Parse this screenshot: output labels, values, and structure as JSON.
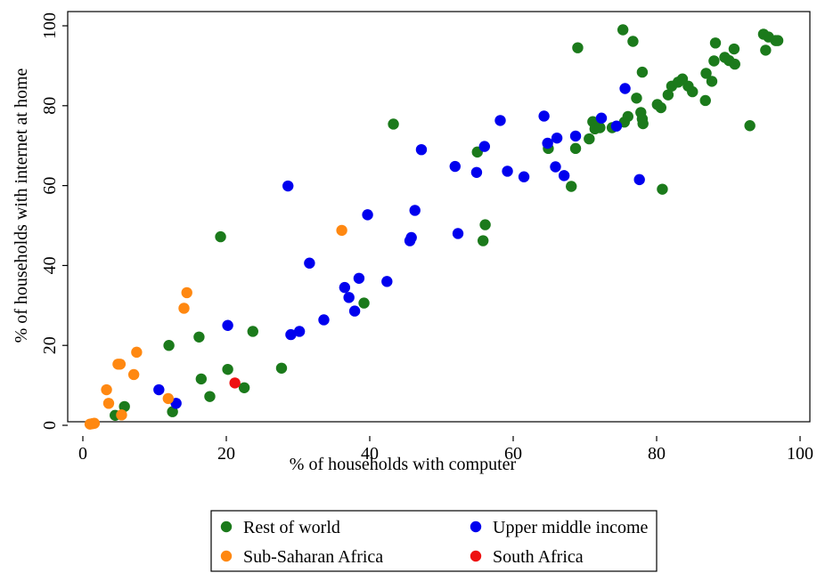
{
  "chart_data": {
    "type": "scatter",
    "title": "",
    "xlabel": "% of households with computer",
    "ylabel": "% of households with internet at home",
    "xlim": [
      0,
      100
    ],
    "ylim": [
      0,
      100
    ],
    "xticks": [
      "0",
      "20",
      "40",
      "60",
      "80",
      "100"
    ],
    "yticks": [
      "0",
      "20",
      "40",
      "60",
      "80",
      "100"
    ],
    "grid": false,
    "legend_placement": "bottom",
    "series": [
      {
        "name": "Rest of world",
        "color": "#1b7a1b",
        "points": [
          [
            4.5,
            2.5
          ],
          [
            5.8,
            4.7
          ],
          [
            12.5,
            3.4
          ],
          [
            12.0,
            20.0
          ],
          [
            16.2,
            22.1
          ],
          [
            16.5,
            11.6
          ],
          [
            17.7,
            7.2
          ],
          [
            19.2,
            47.2
          ],
          [
            20.2,
            14.0
          ],
          [
            22.5,
            9.4
          ],
          [
            23.7,
            23.5
          ],
          [
            27.7,
            14.3
          ],
          [
            39.2,
            30.6
          ],
          [
            43.3,
            75.4
          ],
          [
            55.0,
            68.4
          ],
          [
            55.8,
            46.2
          ],
          [
            56.1,
            50.2
          ],
          [
            64.9,
            69.3
          ],
          [
            68.1,
            59.8
          ],
          [
            68.7,
            69.3
          ],
          [
            69.0,
            94.5
          ],
          [
            70.6,
            71.7
          ],
          [
            71.1,
            76.0
          ],
          [
            71.4,
            74.2
          ],
          [
            72.1,
            74.5
          ],
          [
            73.8,
            74.5
          ],
          [
            75.5,
            75.9
          ],
          [
            75.3,
            99.0
          ],
          [
            76.0,
            77.3
          ],
          [
            76.7,
            96.1
          ],
          [
            77.2,
            81.9
          ],
          [
            77.8,
            78.3
          ],
          [
            78.0,
            88.4
          ],
          [
            78.0,
            76.7
          ],
          [
            78.1,
            75.5
          ],
          [
            80.1,
            80.3
          ],
          [
            80.6,
            79.5
          ],
          [
            80.8,
            59.1
          ],
          [
            81.6,
            82.7
          ],
          [
            82.1,
            84.9
          ],
          [
            83.0,
            85.9
          ],
          [
            83.6,
            86.7
          ],
          [
            84.4,
            84.9
          ],
          [
            85.0,
            83.5
          ],
          [
            86.8,
            81.3
          ],
          [
            86.9,
            88.1
          ],
          [
            87.7,
            86.1
          ],
          [
            88.0,
            91.2
          ],
          [
            88.2,
            95.7
          ],
          [
            89.5,
            92.1
          ],
          [
            90.1,
            91.3
          ],
          [
            90.8,
            94.2
          ],
          [
            90.9,
            90.4
          ],
          [
            93.0,
            75.0
          ],
          [
            94.9,
            97.9
          ],
          [
            95.2,
            93.9
          ],
          [
            95.6,
            97.2
          ],
          [
            96.6,
            96.3
          ],
          [
            96.9,
            96.3
          ]
        ]
      },
      {
        "name": "Upper middle income",
        "color": "#0000ee",
        "points": [
          [
            10.6,
            8.9
          ],
          [
            13.0,
            5.5
          ],
          [
            20.2,
            25.0
          ],
          [
            28.6,
            59.9
          ],
          [
            29.0,
            22.7
          ],
          [
            30.2,
            23.5
          ],
          [
            31.6,
            40.6
          ],
          [
            33.6,
            26.4
          ],
          [
            36.5,
            34.5
          ],
          [
            37.1,
            32.0
          ],
          [
            37.9,
            28.6
          ],
          [
            38.5,
            36.8
          ],
          [
            39.7,
            52.7
          ],
          [
            42.4,
            36.0
          ],
          [
            45.6,
            46.2
          ],
          [
            45.8,
            47.0
          ],
          [
            46.3,
            53.8
          ],
          [
            47.2,
            69.0
          ],
          [
            51.9,
            64.8
          ],
          [
            52.3,
            48.0
          ],
          [
            54.9,
            63.3
          ],
          [
            56.0,
            69.8
          ],
          [
            58.2,
            76.3
          ],
          [
            59.2,
            63.6
          ],
          [
            61.5,
            62.2
          ],
          [
            64.3,
            77.4
          ],
          [
            64.8,
            70.6
          ],
          [
            65.9,
            64.7
          ],
          [
            66.1,
            71.9
          ],
          [
            67.1,
            62.5
          ],
          [
            68.7,
            72.4
          ],
          [
            72.3,
            76.9
          ],
          [
            74.4,
            74.9
          ],
          [
            75.6,
            84.3
          ],
          [
            77.6,
            61.5
          ]
        ]
      },
      {
        "name": "Sub-Saharan Africa",
        "color": "#ff8811",
        "points": [
          [
            1.0,
            0.3
          ],
          [
            1.3,
            0.4
          ],
          [
            1.6,
            0.5
          ],
          [
            3.3,
            8.9
          ],
          [
            3.6,
            5.5
          ],
          [
            4.9,
            15.3
          ],
          [
            5.2,
            15.3
          ],
          [
            5.4,
            2.6
          ],
          [
            7.1,
            12.7
          ],
          [
            7.5,
            18.3
          ],
          [
            11.9,
            6.7
          ],
          [
            14.1,
            29.3
          ],
          [
            14.5,
            33.2
          ],
          [
            36.1,
            48.8
          ]
        ]
      },
      {
        "name": "South Africa",
        "color": "#ee1111",
        "points": [
          [
            21.2,
            10.6
          ]
        ]
      }
    ]
  }
}
